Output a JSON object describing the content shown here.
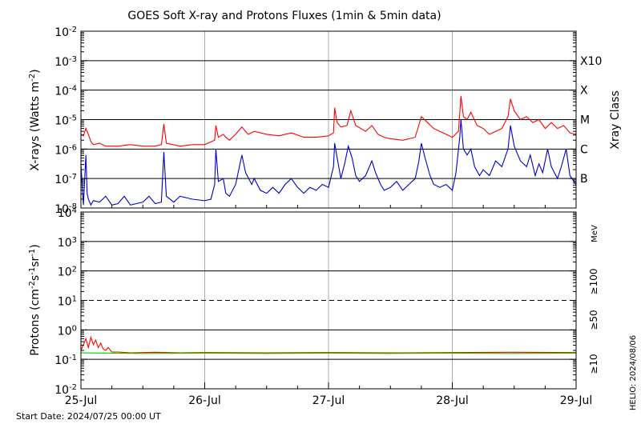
{
  "chart_data": {
    "title": "GOES Soft X-ray and Protons Fluxes   (1min & 5min data)",
    "start_date": "Start Date: 2024/07/25 00:00 UT",
    "stamp": "HELIO: 2024/08/06",
    "x_tick_labels": [
      "25-Jul",
      "26-Jul",
      "27-Jul",
      "28-Jul",
      "29-Jul"
    ],
    "x_range_days": [
      0,
      4
    ],
    "panels": [
      {
        "id": "xray",
        "type": "line",
        "ylabel_base": "X-rays (Watts m",
        "ylabel_exp": "-2",
        "ylabel_close": ")",
        "yscale": "log",
        "ylim_exp": [
          -8,
          -2
        ],
        "y_tick_exponents": [
          "-8",
          "-7",
          "-6",
          "-5",
          "-4",
          "-3",
          "-2"
        ],
        "grid_lines_exp": [
          -7,
          -6,
          -5,
          -4,
          -3
        ],
        "right_axis_title": "Xray Class",
        "class_labels": [
          {
            "text": "B",
            "exp": -7
          },
          {
            "text": "C",
            "exp": -6
          },
          {
            "text": "M",
            "exp": -5
          },
          {
            "text": "X",
            "exp": -4
          },
          {
            "text": "X10",
            "exp": -3
          }
        ],
        "series": [
          {
            "color": "#ff0000",
            "points": [
              [
                0.0,
                -5.5
              ],
              [
                0.02,
                -5.55
              ],
              [
                0.04,
                -5.3
              ],
              [
                0.06,
                -5.5
              ],
              [
                0.08,
                -5.75
              ],
              [
                0.1,
                -5.85
              ],
              [
                0.15,
                -5.8
              ],
              [
                0.2,
                -5.9
              ],
              [
                0.3,
                -5.9
              ],
              [
                0.4,
                -5.85
              ],
              [
                0.5,
                -5.9
              ],
              [
                0.6,
                -5.9
              ],
              [
                0.65,
                -5.85
              ],
              [
                0.67,
                -5.15
              ],
              [
                0.69,
                -5.8
              ],
              [
                0.8,
                -5.9
              ],
              [
                0.9,
                -5.85
              ],
              [
                1.0,
                -5.85
              ],
              [
                1.08,
                -5.7
              ],
              [
                1.09,
                -5.2
              ],
              [
                1.11,
                -5.6
              ],
              [
                1.15,
                -5.5
              ],
              [
                1.17,
                -5.6
              ],
              [
                1.2,
                -5.7
              ],
              [
                1.25,
                -5.5
              ],
              [
                1.3,
                -5.25
              ],
              [
                1.35,
                -5.5
              ],
              [
                1.4,
                -5.4
              ],
              [
                1.5,
                -5.5
              ],
              [
                1.6,
                -5.55
              ],
              [
                1.7,
                -5.45
              ],
              [
                1.8,
                -5.6
              ],
              [
                1.9,
                -5.6
              ],
              [
                2.0,
                -5.55
              ],
              [
                2.04,
                -5.45
              ],
              [
                2.05,
                -4.6
              ],
              [
                2.07,
                -5.1
              ],
              [
                2.1,
                -5.25
              ],
              [
                2.15,
                -5.2
              ],
              [
                2.18,
                -4.7
              ],
              [
                2.22,
                -5.2
              ],
              [
                2.3,
                -5.4
              ],
              [
                2.35,
                -5.2
              ],
              [
                2.4,
                -5.5
              ],
              [
                2.45,
                -5.6
              ],
              [
                2.5,
                -5.65
              ],
              [
                2.6,
                -5.7
              ],
              [
                2.7,
                -5.6
              ],
              [
                2.75,
                -4.9
              ],
              [
                2.8,
                -5.1
              ],
              [
                2.85,
                -5.3
              ],
              [
                2.9,
                -5.4
              ],
              [
                2.95,
                -5.5
              ],
              [
                3.0,
                -5.6
              ],
              [
                3.05,
                -5.4
              ],
              [
                3.07,
                -4.2
              ],
              [
                3.09,
                -4.9
              ],
              [
                3.12,
                -5.0
              ],
              [
                3.15,
                -4.75
              ],
              [
                3.2,
                -5.2
              ],
              [
                3.25,
                -5.3
              ],
              [
                3.3,
                -5.5
              ],
              [
                3.35,
                -5.4
              ],
              [
                3.4,
                -5.3
              ],
              [
                3.45,
                -4.9
              ],
              [
                3.47,
                -4.3
              ],
              [
                3.5,
                -4.7
              ],
              [
                3.55,
                -5.0
              ],
              [
                3.6,
                -4.9
              ],
              [
                3.65,
                -5.1
              ],
              [
                3.7,
                -5.0
              ],
              [
                3.75,
                -5.3
              ],
              [
                3.8,
                -5.1
              ],
              [
                3.85,
                -5.3
              ],
              [
                3.9,
                -5.2
              ],
              [
                3.95,
                -5.45
              ],
              [
                4.0,
                -5.5
              ]
            ]
          },
          {
            "color": "#0000cc",
            "points": [
              [
                0.0,
                -6.5
              ],
              [
                0.02,
                -7.9
              ],
              [
                0.04,
                -6.2
              ],
              [
                0.05,
                -7.5
              ],
              [
                0.06,
                -7.7
              ],
              [
                0.08,
                -7.9
              ],
              [
                0.1,
                -7.75
              ],
              [
                0.15,
                -7.8
              ],
              [
                0.2,
                -7.6
              ],
              [
                0.25,
                -7.9
              ],
              [
                0.3,
                -7.85
              ],
              [
                0.35,
                -7.6
              ],
              [
                0.4,
                -7.9
              ],
              [
                0.5,
                -7.8
              ],
              [
                0.55,
                -7.6
              ],
              [
                0.6,
                -7.85
              ],
              [
                0.65,
                -7.8
              ],
              [
                0.67,
                -6.1
              ],
              [
                0.69,
                -7.6
              ],
              [
                0.75,
                -7.8
              ],
              [
                0.8,
                -7.6
              ],
              [
                0.9,
                -7.7
              ],
              [
                1.0,
                -7.75
              ],
              [
                1.05,
                -7.7
              ],
              [
                1.08,
                -7.2
              ],
              [
                1.09,
                -6.0
              ],
              [
                1.11,
                -7.1
              ],
              [
                1.15,
                -7.0
              ],
              [
                1.17,
                -7.5
              ],
              [
                1.2,
                -7.6
              ],
              [
                1.25,
                -7.2
              ],
              [
                1.3,
                -6.2
              ],
              [
                1.33,
                -6.8
              ],
              [
                1.38,
                -7.2
              ],
              [
                1.4,
                -7.0
              ],
              [
                1.45,
                -7.4
              ],
              [
                1.5,
                -7.5
              ],
              [
                1.55,
                -7.3
              ],
              [
                1.6,
                -7.5
              ],
              [
                1.65,
                -7.2
              ],
              [
                1.7,
                -7.0
              ],
              [
                1.75,
                -7.3
              ],
              [
                1.8,
                -7.5
              ],
              [
                1.85,
                -7.3
              ],
              [
                1.9,
                -7.4
              ],
              [
                1.95,
                -7.2
              ],
              [
                2.0,
                -7.3
              ],
              [
                2.04,
                -6.6
              ],
              [
                2.05,
                -5.8
              ],
              [
                2.07,
                -6.3
              ],
              [
                2.1,
                -7.0
              ],
              [
                2.13,
                -6.5
              ],
              [
                2.16,
                -5.9
              ],
              [
                2.19,
                -6.3
              ],
              [
                2.22,
                -6.9
              ],
              [
                2.25,
                -7.1
              ],
              [
                2.3,
                -6.9
              ],
              [
                2.35,
                -6.4
              ],
              [
                2.38,
                -6.8
              ],
              [
                2.42,
                -7.2
              ],
              [
                2.45,
                -7.4
              ],
              [
                2.5,
                -7.3
              ],
              [
                2.55,
                -7.1
              ],
              [
                2.6,
                -7.4
              ],
              [
                2.65,
                -7.2
              ],
              [
                2.7,
                -7.0
              ],
              [
                2.73,
                -6.4
              ],
              [
                2.75,
                -5.8
              ],
              [
                2.78,
                -6.3
              ],
              [
                2.82,
                -6.9
              ],
              [
                2.85,
                -7.2
              ],
              [
                2.9,
                -7.3
              ],
              [
                2.95,
                -7.2
              ],
              [
                3.0,
                -7.4
              ],
              [
                3.03,
                -6.8
              ],
              [
                3.06,
                -5.6
              ],
              [
                3.07,
                -5.0
              ],
              [
                3.09,
                -6.0
              ],
              [
                3.12,
                -6.2
              ],
              [
                3.15,
                -6.0
              ],
              [
                3.18,
                -6.6
              ],
              [
                3.22,
                -6.9
              ],
              [
                3.25,
                -6.7
              ],
              [
                3.3,
                -6.9
              ],
              [
                3.35,
                -6.4
              ],
              [
                3.4,
                -6.6
              ],
              [
                3.45,
                -6.0
              ],
              [
                3.47,
                -5.2
              ],
              [
                3.5,
                -5.9
              ],
              [
                3.55,
                -6.4
              ],
              [
                3.6,
                -6.6
              ],
              [
                3.63,
                -6.2
              ],
              [
                3.67,
                -6.9
              ],
              [
                3.7,
                -6.5
              ],
              [
                3.73,
                -6.8
              ],
              [
                3.77,
                -6.0
              ],
              [
                3.8,
                -6.6
              ],
              [
                3.85,
                -7.0
              ],
              [
                3.88,
                -6.6
              ],
              [
                3.92,
                -6.0
              ],
              [
                3.95,
                -6.9
              ],
              [
                4.0,
                -7.2
              ]
            ]
          }
        ]
      },
      {
        "id": "protons",
        "type": "line",
        "ylabel_parts": [
          "Protons (cm",
          "-2",
          "s",
          "-1",
          "sr",
          "-1",
          ")"
        ],
        "yscale": "log",
        "ylim_exp": [
          -2,
          4
        ],
        "y_tick_exponents": [
          "-2",
          "-1",
          "0",
          "1",
          "2",
          "3",
          "4"
        ],
        "grid_lines_exp": [
          -1,
          0,
          2,
          3
        ],
        "dashed_line_exp": 1,
        "energy_unit": "MeV",
        "energy_labels": [
          {
            "text": "≥100",
            "color": "#00cc00"
          },
          {
            "text": "≥50",
            "color": "#0000cc"
          },
          {
            "text": "≥10",
            "color": "#ff0000"
          }
        ],
        "series": [
          {
            "name": "≥10",
            "color": "#ff0000",
            "points": [
              [
                0.0,
                -0.7
              ],
              [
                0.02,
                -0.5
              ],
              [
                0.04,
                -0.3
              ],
              [
                0.06,
                -0.6
              ],
              [
                0.08,
                -0.25
              ],
              [
                0.1,
                -0.5
              ],
              [
                0.12,
                -0.35
              ],
              [
                0.14,
                -0.6
              ],
              [
                0.16,
                -0.45
              ],
              [
                0.18,
                -0.65
              ],
              [
                0.2,
                -0.7
              ],
              [
                0.22,
                -0.6
              ],
              [
                0.25,
                -0.75
              ],
              [
                0.3,
                -0.75
              ],
              [
                0.4,
                -0.78
              ],
              [
                0.6,
                -0.76
              ],
              [
                0.8,
                -0.78
              ],
              [
                1.0,
                -0.77
              ],
              [
                1.5,
                -0.78
              ],
              [
                2.0,
                -0.77
              ],
              [
                2.5,
                -0.78
              ],
              [
                3.0,
                -0.77
              ],
              [
                3.5,
                -0.76
              ],
              [
                4.0,
                -0.77
              ]
            ]
          },
          {
            "name": "≥100",
            "color": "#00cc00",
            "points": [
              [
                0.0,
                -0.78
              ],
              [
                0.5,
                -0.8
              ],
              [
                1.0,
                -0.79
              ],
              [
                1.5,
                -0.8
              ],
              [
                2.0,
                -0.79
              ],
              [
                2.5,
                -0.8
              ],
              [
                3.0,
                -0.79
              ],
              [
                3.5,
                -0.8
              ],
              [
                4.0,
                -0.79
              ]
            ]
          }
        ]
      }
    ]
  }
}
